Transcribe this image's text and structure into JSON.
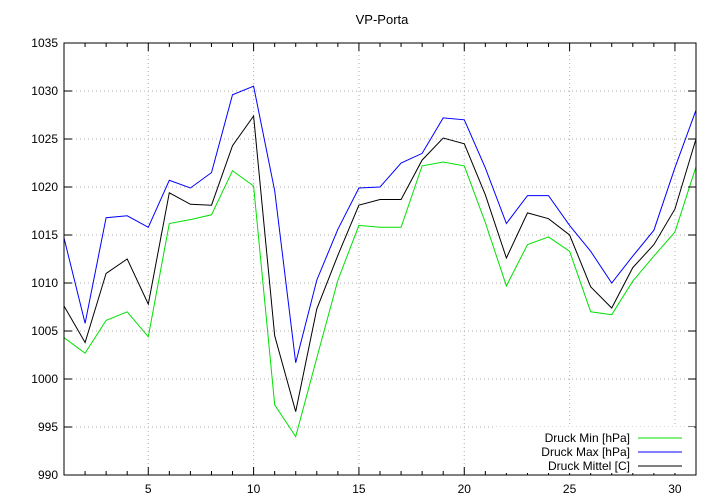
{
  "chart_data": {
    "type": "line",
    "title": "VP-Porta",
    "xlabel": "",
    "ylabel": "",
    "xlim": [
      1,
      31
    ],
    "ylim": [
      990,
      1035
    ],
    "x_ticks": [
      5,
      10,
      15,
      20,
      25,
      30
    ],
    "y_ticks": [
      990,
      995,
      1000,
      1005,
      1010,
      1015,
      1020,
      1025,
      1030,
      1035
    ],
    "grid": true,
    "legend_position": "bottom-right",
    "x": [
      1,
      2,
      3,
      4,
      5,
      6,
      7,
      8,
      9,
      10,
      11,
      12,
      13,
      14,
      15,
      16,
      17,
      18,
      19,
      20,
      21,
      22,
      23,
      24,
      25,
      26,
      27,
      28,
      29,
      30,
      31
    ],
    "series": [
      {
        "name": "Druck Min [hPa]",
        "color": "#00e000",
        "values": [
          1004.3,
          1002.7,
          1006.1,
          1007.0,
          1004.4,
          1016.2,
          1016.6,
          1017.1,
          1021.7,
          1020.1,
          997.3,
          994.0,
          1002.2,
          1010.3,
          1016.0,
          1015.8,
          1015.8,
          1022.2,
          1022.6,
          1022.2,
          1016.3,
          1009.7,
          1014.0,
          1014.8,
          1013.3,
          1007.0,
          1006.7,
          1010.2,
          1012.8,
          1015.3,
          1022.1
        ]
      },
      {
        "name": "Druck Max [hPa]",
        "color": "#0000ff",
        "values": [
          1014.7,
          1005.8,
          1016.8,
          1017.0,
          1015.8,
          1020.7,
          1019.9,
          1021.5,
          1029.6,
          1030.5,
          1019.6,
          1001.7,
          1010.3,
          1015.6,
          1019.9,
          1020.0,
          1022.5,
          1023.5,
          1027.2,
          1027.0,
          1022.0,
          1016.2,
          1019.1,
          1019.1,
          1016.0,
          1013.3,
          1010.0,
          1012.8,
          1015.5,
          1022.0,
          1028.0
        ]
      },
      {
        "name": "Druck Mittel [C]",
        "color": "#000000",
        "values": [
          1007.6,
          1003.8,
          1011.0,
          1012.5,
          1007.8,
          1019.4,
          1018.2,
          1018.1,
          1024.3,
          1027.4,
          1004.5,
          996.6,
          1007.3,
          1012.9,
          1018.1,
          1018.7,
          1018.7,
          1022.8,
          1025.1,
          1024.5,
          1019.2,
          1012.6,
          1017.3,
          1016.7,
          1015.0,
          1009.6,
          1007.4,
          1011.6,
          1014.0,
          1017.7,
          1025.0
        ]
      }
    ]
  }
}
